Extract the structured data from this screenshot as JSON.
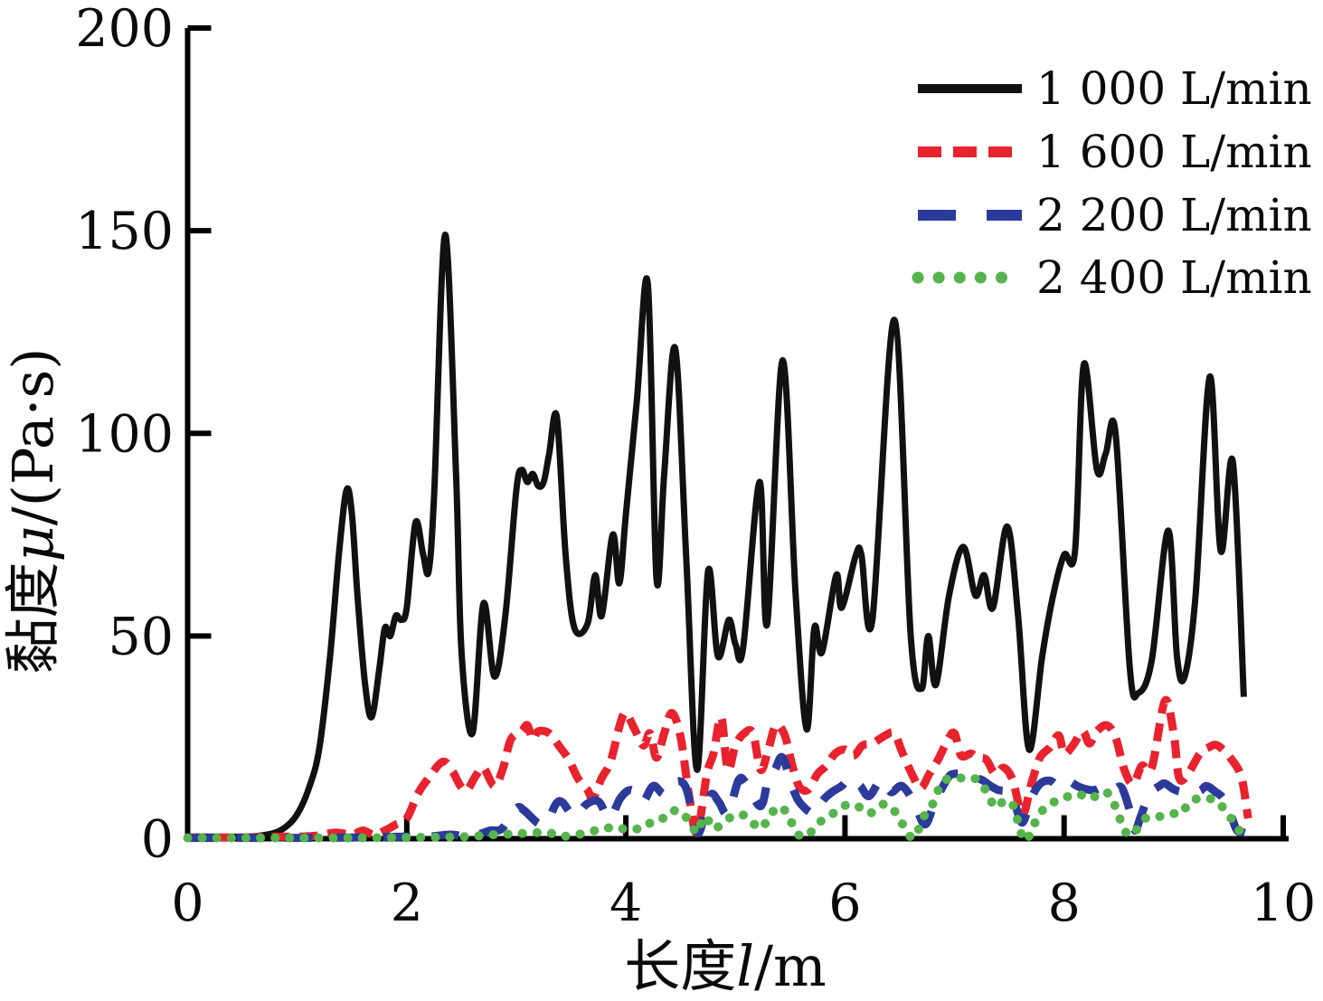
{
  "chart_data": {
    "type": "line",
    "title": "",
    "xlabel": {
      "text": "长度l/m",
      "prefix": "长度",
      "symbol": "l",
      "suffix": "/m"
    },
    "ylabel": {
      "text": "黏度μ/(Pa·s)",
      "prefix": "黏度",
      "symbol": "μ",
      "suffix": "/(Pa·s)"
    },
    "xlim": [
      0,
      10
    ],
    "ylim": [
      0,
      200
    ],
    "x_ticks": [
      0,
      2,
      4,
      6,
      8,
      10
    ],
    "y_ticks": [
      0,
      50,
      100,
      150,
      200
    ],
    "grid": false,
    "legend_position": "top-right",
    "axis_color": "#000000",
    "background": "#ffffff",
    "series": [
      {
        "name": "1 000 L/min",
        "color": "#111111",
        "style": "solid",
        "x": [
          0,
          0.3,
          0.5,
          0.65,
          0.8,
          0.9,
          1.0,
          1.1,
          1.2,
          1.3,
          1.38,
          1.45,
          1.5,
          1.55,
          1.62,
          1.68,
          1.75,
          1.8,
          1.85,
          1.9,
          1.95,
          2.0,
          2.08,
          2.15,
          2.2,
          2.25,
          2.35,
          2.45,
          2.5,
          2.6,
          2.7,
          2.8,
          2.9,
          3.0,
          3.05,
          3.1,
          3.15,
          3.2,
          3.25,
          3.3,
          3.37,
          3.45,
          3.53,
          3.65,
          3.72,
          3.78,
          3.88,
          3.94,
          4.0,
          4.1,
          4.2,
          4.28,
          4.35,
          4.45,
          4.55,
          4.65,
          4.75,
          4.84,
          4.94,
          5.0,
          5.07,
          5.22,
          5.29,
          5.43,
          5.55,
          5.65,
          5.72,
          5.79,
          5.92,
          5.97,
          6.1,
          6.15,
          6.25,
          6.45,
          6.6,
          6.7,
          6.76,
          6.83,
          6.95,
          7.08,
          7.19,
          7.27,
          7.35,
          7.48,
          7.58,
          7.68,
          7.8,
          7.9,
          8.0,
          8.1,
          8.18,
          8.3,
          8.38,
          8.47,
          8.6,
          8.68,
          8.8,
          8.95,
          9.03,
          9.1,
          9.2,
          9.33,
          9.43,
          9.54,
          9.64
        ],
        "y": [
          0.5,
          0.5,
          0.5,
          0.7,
          1.5,
          3,
          6,
          12,
          22,
          45,
          70,
          86,
          80,
          60,
          38,
          30,
          42,
          52,
          50,
          55,
          54,
          57,
          78,
          70,
          66,
          85,
          149,
          90,
          46,
          26,
          58,
          40,
          55,
          86,
          91,
          88,
          90,
          87,
          88,
          95,
          104,
          70,
          52,
          53,
          65,
          55,
          75,
          63,
          80,
          108,
          137,
          64,
          90,
          121,
          70,
          17,
          66,
          45,
          54,
          48,
          47,
          88,
          53,
          118,
          60,
          27,
          52,
          46,
          65,
          57,
          70,
          70,
          54,
          128,
          50,
          37,
          50,
          38,
          60,
          72,
          60,
          65,
          57,
          77,
          55,
          22,
          45,
          60,
          70,
          71,
          117,
          91,
          95,
          100,
          42,
          36,
          44,
          76,
          45,
          40,
          60,
          114,
          71,
          93,
          35
        ]
      },
      {
        "name": "1 600 L/min",
        "color": "#e8232e",
        "style": "dashed",
        "x": [
          0,
          0.5,
          0.8,
          1.0,
          1.2,
          1.35,
          1.5,
          1.6,
          1.7,
          1.8,
          1.9,
          2.0,
          2.1,
          2.2,
          2.33,
          2.42,
          2.49,
          2.55,
          2.63,
          2.7,
          2.8,
          2.88,
          2.95,
          3.05,
          3.1,
          3.15,
          3.2,
          3.3,
          3.4,
          3.48,
          3.56,
          3.65,
          3.7,
          3.78,
          3.86,
          3.95,
          4.0,
          4.08,
          4.16,
          4.22,
          4.28,
          4.35,
          4.42,
          4.5,
          4.58,
          4.65,
          4.74,
          4.8,
          4.87,
          4.93,
          5.0,
          5.08,
          5.16,
          5.23,
          5.3,
          5.37,
          5.45,
          5.52,
          5.58,
          5.66,
          5.75,
          5.83,
          5.91,
          6.0,
          6.08,
          6.16,
          6.25,
          6.37,
          6.45,
          6.52,
          6.61,
          6.69,
          6.77,
          6.85,
          6.94,
          7.0,
          7.06,
          7.15,
          7.21,
          7.29,
          7.37,
          7.45,
          7.53,
          7.62,
          7.7,
          7.78,
          7.87,
          7.95,
          8.0,
          8.08,
          8.17,
          8.23,
          8.3,
          8.39,
          8.47,
          8.55,
          8.63,
          8.71,
          8.8,
          8.92,
          9.0,
          9.05,
          9.13,
          9.24,
          9.32,
          9.4,
          9.53,
          9.62,
          9.68
        ],
        "y": [
          0.3,
          0.3,
          0.5,
          0.5,
          0.8,
          1.5,
          1,
          2,
          1,
          2,
          3.5,
          5,
          11,
          15,
          19,
          16.5,
          13,
          12,
          15.5,
          17.5,
          13,
          17.5,
          24.5,
          26.5,
          28,
          24.5,
          26.5,
          26,
          22.5,
          19.5,
          15,
          12,
          10,
          15,
          19,
          28.5,
          31,
          27,
          23,
          26,
          20,
          26,
          31,
          25,
          10,
          1.5,
          16,
          21,
          30,
          17,
          23,
          26,
          26,
          17,
          22,
          28,
          25.5,
          18,
          13,
          12,
          16,
          18,
          21,
          22,
          20.5,
          23,
          23.5,
          25.5,
          26,
          21.5,
          16,
          12.5,
          16,
          19.5,
          24.5,
          26,
          20.5,
          21,
          20,
          19.5,
          16,
          17.5,
          14.5,
          6,
          13.5,
          20,
          22.5,
          25.5,
          21,
          23,
          26.5,
          23.5,
          26.5,
          28,
          25,
          17,
          13.5,
          18,
          17.5,
          34,
          26,
          15,
          16,
          21,
          22.5,
          23,
          19.5,
          15,
          5
        ]
      },
      {
        "name": "2 200 L/min",
        "color": "#2b3a9b",
        "style": "long-dashed",
        "x": [
          0,
          0.5,
          1.0,
          1.5,
          2.0,
          2.2,
          2.4,
          2.55,
          2.65,
          2.76,
          2.87,
          3.0,
          3.07,
          3.2,
          3.28,
          3.36,
          3.42,
          3.53,
          3.64,
          3.75,
          3.85,
          3.95,
          4.05,
          4.15,
          4.25,
          4.35,
          4.45,
          4.55,
          4.65,
          4.72,
          4.78,
          4.85,
          4.93,
          5.03,
          5.1,
          5.23,
          5.3,
          5.36,
          5.43,
          5.53,
          5.6,
          5.72,
          5.8,
          5.88,
          5.97,
          6.05,
          6.14,
          6.22,
          6.33,
          6.42,
          6.52,
          6.63,
          6.73,
          6.82,
          6.94,
          7.0,
          7.08,
          7.16,
          7.25,
          7.33,
          7.4,
          7.48,
          7.55,
          7.62,
          7.7,
          7.78,
          7.87,
          7.95,
          8.03,
          8.12,
          8.2,
          8.28,
          8.37,
          8.45,
          8.53,
          8.62,
          8.65,
          8.7,
          8.78,
          8.87,
          8.92,
          9.0,
          9.07,
          9.15,
          9.24,
          9.3,
          9.38,
          9.45,
          9.52,
          9.58,
          9.65
        ],
        "y": [
          0.2,
          0.2,
          0.2,
          0.3,
          0.5,
          0.5,
          1,
          0.5,
          1,
          2,
          2.5,
          7.5,
          7,
          3.8,
          4,
          8.5,
          9,
          5.5,
          8.5,
          9.2,
          5,
          10,
          12,
          9,
          13,
          11,
          14,
          12.5,
          1.5,
          6,
          11,
          9,
          6.2,
          14.5,
          13.5,
          8,
          15,
          17,
          20,
          12,
          8.5,
          6.2,
          9.5,
          11.5,
          13,
          15,
          13,
          10.5,
          14.5,
          11.5,
          13,
          9,
          3.5,
          9,
          15,
          16,
          16,
          15,
          14.5,
          13,
          12,
          11.5,
          8.5,
          4,
          10,
          13.5,
          14.3,
          13,
          14.3,
          13,
          12.2,
          12,
          13,
          12.2,
          12.4,
          5,
          2,
          5.5,
          11,
          13,
          13.6,
          12.2,
          11.6,
          11.8,
          11.8,
          13,
          11.6,
          10,
          6,
          2,
          1.5
        ]
      },
      {
        "name": "2 400 L/min",
        "color": "#55b44b",
        "style": "dotted",
        "x": [
          0,
          0.5,
          1.0,
          1.5,
          2.0,
          2.4,
          2.6,
          2.8,
          3.0,
          3.2,
          3.35,
          3.47,
          3.64,
          3.75,
          3.83,
          3.91,
          4.0,
          4.08,
          4.16,
          4.27,
          4.38,
          4.45,
          4.52,
          4.6,
          4.65,
          4.72,
          4.8,
          4.88,
          4.97,
          5.05,
          5.13,
          5.22,
          5.3,
          5.38,
          5.47,
          5.55,
          5.63,
          5.72,
          5.8,
          5.88,
          5.97,
          6.05,
          6.13,
          6.22,
          6.3,
          6.38,
          6.47,
          6.55,
          6.63,
          6.72,
          6.8,
          6.88,
          6.97,
          7.05,
          7.13,
          7.21,
          7.3,
          7.37,
          7.45,
          7.53,
          7.62,
          7.67,
          7.75,
          7.83,
          7.92,
          8.0,
          8.08,
          8.17,
          8.25,
          8.33,
          8.42,
          8.5,
          8.58,
          8.65,
          8.73,
          8.82,
          8.9,
          9.0,
          9.07,
          9.15,
          9.24,
          9.32,
          9.4,
          9.49,
          9.57,
          9.63
        ],
        "y": [
          0.2,
          0.2,
          0.2,
          0.2,
          0.3,
          0.4,
          0.6,
          1,
          1.2,
          1.5,
          1.2,
          0.6,
          1.5,
          2.2,
          2.6,
          3,
          2.2,
          2.4,
          2.6,
          4.8,
          5.2,
          7,
          6.2,
          3.5,
          1.5,
          5.5,
          2.5,
          3.8,
          5.5,
          6,
          4.8,
          2.5,
          4.8,
          7.8,
          6.4,
          1.8,
          0.4,
          2.5,
          4.8,
          6,
          7.8,
          8.5,
          7.8,
          6.2,
          7.8,
          8.5,
          6.2,
          2.5,
          0.2,
          5.5,
          8.5,
          13.6,
          15,
          15,
          14.6,
          14.6,
          11.3,
          7.8,
          9.2,
          8.5,
          0.4,
          0.2,
          4.8,
          7.8,
          9.2,
          9.9,
          11,
          10.7,
          9.9,
          11.4,
          10.7,
          5.5,
          1,
          1.8,
          4.8,
          5.5,
          5.5,
          6.2,
          6.2,
          9.2,
          9.9,
          9.9,
          9.2,
          6.2,
          3.3,
          0.5
        ]
      }
    ]
  }
}
